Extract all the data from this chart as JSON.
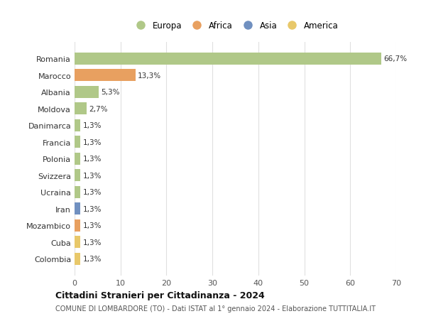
{
  "categories": [
    "Colombia",
    "Cuba",
    "Mozambico",
    "Iran",
    "Ucraina",
    "Svizzera",
    "Polonia",
    "Francia",
    "Danimarca",
    "Moldova",
    "Albania",
    "Marocco",
    "Romania"
  ],
  "values": [
    1.3,
    1.3,
    1.3,
    1.3,
    1.3,
    1.3,
    1.3,
    1.3,
    1.3,
    2.7,
    5.3,
    13.3,
    66.7
  ],
  "colors": [
    "#e8c86a",
    "#e8c86a",
    "#e8a060",
    "#7090c0",
    "#b0c888",
    "#b0c888",
    "#b0c888",
    "#b0c888",
    "#b0c888",
    "#b0c888",
    "#b0c888",
    "#e8a060",
    "#b0c888"
  ],
  "labels": [
    "1,3%",
    "1,3%",
    "1,3%",
    "1,3%",
    "1,3%",
    "1,3%",
    "1,3%",
    "1,3%",
    "1,3%",
    "2,7%",
    "5,3%",
    "13,3%",
    "66,7%"
  ],
  "legend": [
    {
      "label": "Europa",
      "color": "#b0c888"
    },
    {
      "label": "Africa",
      "color": "#e8a060"
    },
    {
      "label": "Asia",
      "color": "#7090c0"
    },
    {
      "label": "America",
      "color": "#e8c86a"
    }
  ],
  "title": "Cittadini Stranieri per Cittadinanza - 2024",
  "subtitle": "COMUNE DI LOMBARDORE (TO) - Dati ISTAT al 1° gennaio 2024 - Elaborazione TUTTITALIA.IT",
  "xlim": [
    0,
    70
  ],
  "xticks": [
    0,
    10,
    20,
    30,
    40,
    50,
    60,
    70
  ],
  "background_color": "#ffffff",
  "plot_bg_color": "#ffffff",
  "grid_color": "#e0e0e0"
}
